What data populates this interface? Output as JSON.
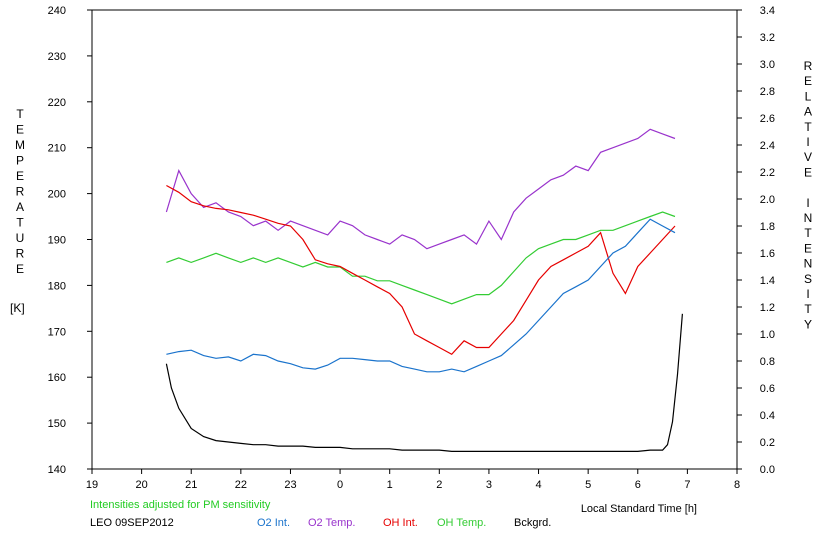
{
  "chart_data": {
    "type": "line",
    "title": "",
    "left_axis": {
      "label_letters": [
        "T",
        "E",
        "M",
        "P",
        "E",
        "R",
        "A",
        "T",
        "U",
        "R",
        "E"
      ],
      "unit": "[K]",
      "range": [
        140,
        240
      ],
      "ticks": [
        "140",
        "150",
        "160",
        "170",
        "180",
        "190",
        "200",
        "210",
        "220",
        "230",
        "240"
      ]
    },
    "right_axis": {
      "label_letters": [
        "R",
        "E",
        "L",
        "A",
        "T",
        "I",
        "V",
        "E",
        " ",
        "I",
        "N",
        "T",
        "E",
        "N",
        "S",
        "I",
        "T",
        "Y"
      ],
      "range": [
        0.0,
        3.4
      ],
      "ticks": [
        "0.0",
        "0.2",
        "0.4",
        "0.6",
        "0.8",
        "1.0",
        "1.2",
        "1.4",
        "1.6",
        "1.8",
        "2.0",
        "2.2",
        "2.4",
        "2.6",
        "2.8",
        "3.0",
        "3.2",
        "3.4"
      ]
    },
    "x_axis": {
      "label": "Local Standard Time [h]",
      "range": [
        19,
        32
      ],
      "ticks": [
        "19",
        "20",
        "21",
        "22",
        "23",
        "0",
        "1",
        "2",
        "3",
        "4",
        "5",
        "6",
        "7",
        "8"
      ]
    },
    "note": "Intensities adjusted for PM sensitivity",
    "station": "LEO 09SEP2012",
    "legend": [
      "O2 Int.",
      "O2 Temp.",
      "OH Int.",
      "OH Temp.",
      "Bckgrd."
    ],
    "series": [
      {
        "name": "O2 Temp.",
        "axis": "left",
        "color": "#9933cc",
        "x": [
          20.5,
          20.75,
          21.0,
          21.25,
          21.5,
          21.75,
          22.0,
          22.25,
          22.5,
          22.75,
          23.0,
          23.25,
          23.5,
          23.75,
          24.0,
          24.25,
          24.5,
          24.75,
          25.0,
          25.25,
          25.5,
          25.75,
          26.0,
          26.25,
          26.5,
          26.75,
          27.0,
          27.25,
          27.5,
          27.75,
          28.0,
          28.25,
          28.5,
          28.75,
          29.0,
          29.25,
          29.5,
          29.75,
          30.0,
          30.25,
          30.5,
          30.75
        ],
        "values": [
          196,
          205,
          200,
          197,
          198,
          196,
          195,
          193,
          194,
          192,
          194,
          193,
          192,
          191,
          194,
          193,
          191,
          190,
          189,
          191,
          190,
          188,
          189,
          190,
          191,
          189,
          194,
          190,
          196,
          199,
          201,
          203,
          204,
          206,
          205,
          209,
          210,
          211,
          212,
          214,
          213,
          212
        ]
      },
      {
        "name": "OH Temp.",
        "axis": "left",
        "color": "#33cc33",
        "x": [
          20.5,
          20.75,
          21.0,
          21.25,
          21.5,
          21.75,
          22.0,
          22.25,
          22.5,
          22.75,
          23.0,
          23.25,
          23.5,
          23.75,
          24.0,
          24.25,
          24.5,
          24.75,
          25.0,
          25.25,
          25.5,
          25.75,
          26.0,
          26.25,
          26.5,
          26.75,
          27.0,
          27.25,
          27.5,
          27.75,
          28.0,
          28.25,
          28.5,
          28.75,
          29.0,
          29.25,
          29.5,
          29.75,
          30.0,
          30.25,
          30.5,
          30.75
        ],
        "values": [
          185,
          186,
          185,
          186,
          187,
          186,
          185,
          186,
          185,
          186,
          185,
          184,
          185,
          184,
          184,
          182,
          182,
          181,
          181,
          180,
          179,
          178,
          177,
          176,
          177,
          178,
          178,
          180,
          183,
          186,
          188,
          189,
          190,
          190,
          191,
          192,
          192,
          193,
          194,
          195,
          196,
          195
        ]
      },
      {
        "name": "OH Int.",
        "axis": "right",
        "color": "#e60000",
        "x": [
          20.5,
          20.75,
          21.0,
          21.25,
          21.5,
          21.75,
          22.0,
          22.25,
          22.5,
          22.75,
          23.0,
          23.25,
          23.5,
          23.75,
          24.0,
          24.25,
          24.5,
          24.75,
          25.0,
          25.25,
          25.5,
          25.75,
          26.0,
          26.25,
          26.5,
          26.75,
          27.0,
          27.25,
          27.5,
          27.75,
          28.0,
          28.25,
          28.5,
          28.75,
          29.0,
          29.25,
          29.5,
          29.75,
          30.0,
          30.25,
          30.5,
          30.75
        ],
        "values": [
          2.1,
          2.05,
          1.98,
          1.95,
          1.93,
          1.92,
          1.9,
          1.88,
          1.85,
          1.82,
          1.8,
          1.7,
          1.55,
          1.52,
          1.5,
          1.45,
          1.4,
          1.35,
          1.3,
          1.2,
          1.0,
          0.95,
          0.9,
          0.85,
          0.95,
          0.9,
          0.9,
          1.0,
          1.1,
          1.25,
          1.4,
          1.5,
          1.55,
          1.6,
          1.65,
          1.75,
          1.45,
          1.3,
          1.5,
          1.6,
          1.7,
          1.8
        ]
      },
      {
        "name": "O2 Int.",
        "axis": "right",
        "color": "#1a73cc",
        "x": [
          20.5,
          20.75,
          21.0,
          21.25,
          21.5,
          21.75,
          22.0,
          22.25,
          22.5,
          22.75,
          23.0,
          23.25,
          23.5,
          23.75,
          24.0,
          24.25,
          24.5,
          24.75,
          25.0,
          25.25,
          25.5,
          25.75,
          26.0,
          26.25,
          26.5,
          26.75,
          27.0,
          27.25,
          27.5,
          27.75,
          28.0,
          28.25,
          28.5,
          28.75,
          29.0,
          29.25,
          29.5,
          29.75,
          30.0,
          30.25,
          30.5,
          30.75
        ],
        "values": [
          0.85,
          0.87,
          0.88,
          0.84,
          0.82,
          0.83,
          0.8,
          0.85,
          0.84,
          0.8,
          0.78,
          0.75,
          0.74,
          0.77,
          0.82,
          0.82,
          0.81,
          0.8,
          0.8,
          0.76,
          0.74,
          0.72,
          0.72,
          0.74,
          0.72,
          0.76,
          0.8,
          0.84,
          0.92,
          1.0,
          1.1,
          1.2,
          1.3,
          1.35,
          1.4,
          1.5,
          1.6,
          1.65,
          1.75,
          1.85,
          1.8,
          1.75
        ]
      },
      {
        "name": "Bckgrd.",
        "axis": "right",
        "color": "#000000",
        "x": [
          20.5,
          20.6,
          20.75,
          21.0,
          21.25,
          21.5,
          21.75,
          22.0,
          22.25,
          22.5,
          22.75,
          23.0,
          23.25,
          23.5,
          23.75,
          24.0,
          24.25,
          24.5,
          24.75,
          25.0,
          25.25,
          25.5,
          25.75,
          26.0,
          26.25,
          26.5,
          26.75,
          27.0,
          27.25,
          27.5,
          27.75,
          28.0,
          28.25,
          28.5,
          28.75,
          29.0,
          29.25,
          29.5,
          29.75,
          30.0,
          30.25,
          30.5,
          30.6,
          30.7,
          30.8,
          30.9
        ],
        "values": [
          0.78,
          0.6,
          0.45,
          0.3,
          0.24,
          0.21,
          0.2,
          0.19,
          0.18,
          0.18,
          0.17,
          0.17,
          0.17,
          0.16,
          0.16,
          0.16,
          0.15,
          0.15,
          0.15,
          0.15,
          0.14,
          0.14,
          0.14,
          0.14,
          0.13,
          0.13,
          0.13,
          0.13,
          0.13,
          0.13,
          0.13,
          0.13,
          0.13,
          0.13,
          0.13,
          0.13,
          0.13,
          0.13,
          0.13,
          0.13,
          0.14,
          0.14,
          0.18,
          0.35,
          0.7,
          1.15
        ]
      }
    ]
  }
}
